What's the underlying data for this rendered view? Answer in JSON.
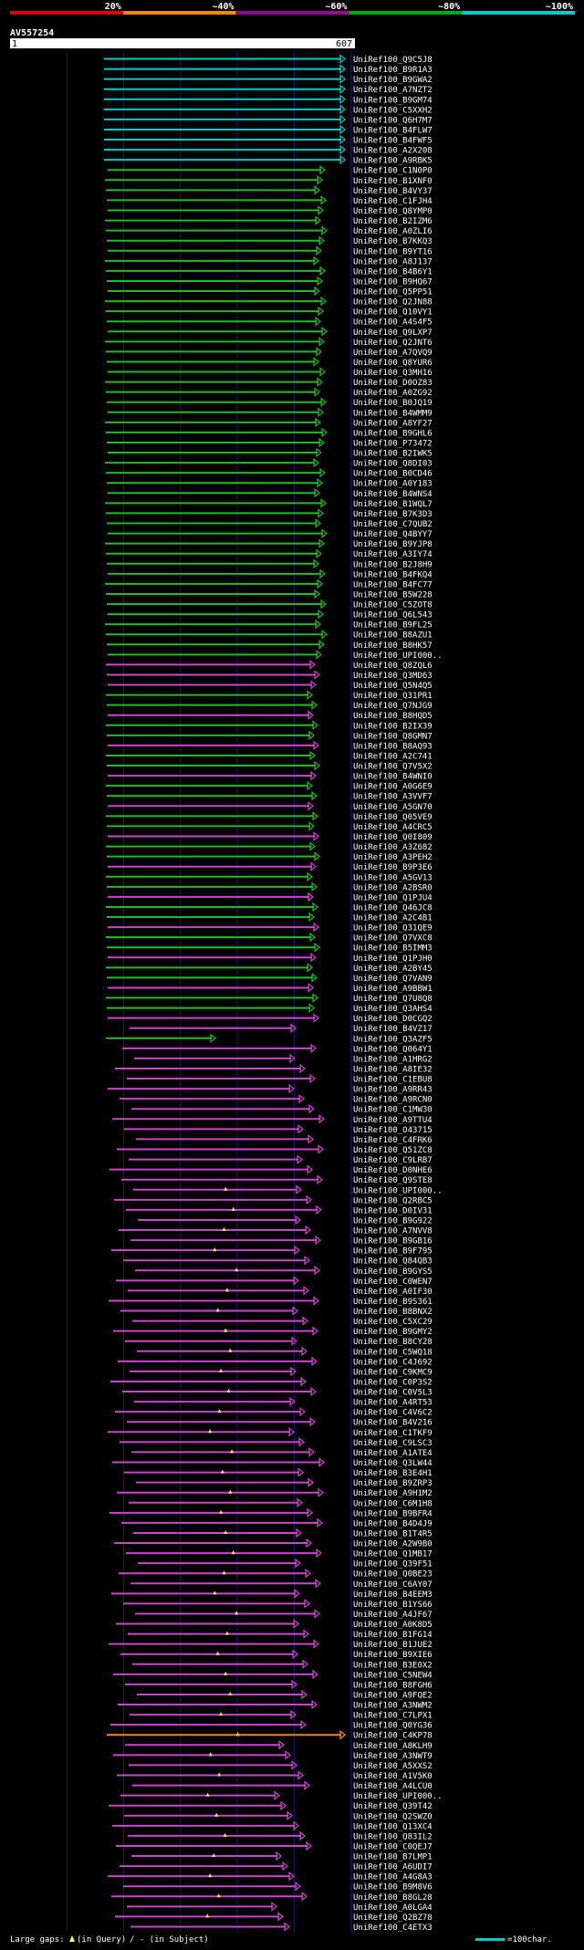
{
  "chart_data": {
    "type": "alignment-overview",
    "query": "AV557254",
    "query_length": 607,
    "axis_start_label": "1",
    "axis_end_label": "607",
    "scale": [
      {
        "label": "20%",
        "color": "#dd0000"
      },
      {
        "label": "~40%",
        "color": "#ff8800"
      },
      {
        "label": "~60%",
        "color": "#990099"
      },
      {
        "label": "~80%",
        "color": "#00aa00"
      },
      {
        "label": "~100%",
        "color": "#00cccc"
      }
    ],
    "hits": [
      "UniRef100_Q9C5J8",
      "UniRef100_B9R1A3",
      "UniRef100_B9GWA2",
      "UniRef100_A7NZT2",
      "UniRef100_B9GM74",
      "UniRef100_C5XXH2",
      "UniRef100_Q6H7M7",
      "UniRef100_B4FLW7",
      "UniRef100_B4FWF5",
      "UniRef100_A2X208",
      "UniRef100_A9RBK5",
      "UniRef100_C1N0P0",
      "UniRef100_B1XNF0",
      "UniRef100_B4VY37",
      "UniRef100_C1FJH4",
      "UniRef100_Q8YMP0",
      "UniRef100_B2IZM6",
      "UniRef100_A0ZLI6",
      "UniRef100_B7KKQ3",
      "UniRef100_B9YT16",
      "UniRef100_A8J137",
      "UniRef100_B4B6Y1",
      "UniRef100_B9HQ67",
      "UniRef100_Q5PP51",
      "UniRef100_Q2JN88",
      "UniRef100_Q10VY1",
      "UniRef100_A4S4F5",
      "UniRef100_Q9LXP7",
      "UniRef100_Q2JNT6",
      "UniRef100_A7QVQ9",
      "UniRef100_Q8YUR6",
      "UniRef100_Q3MH16",
      "UniRef100_D0OZ83",
      "UniRef100_A0ZG92",
      "UniRef100_B0JQ19",
      "UniRef100_B4WMM9",
      "UniRef100_A8YF27",
      "UniRef100_B9GHL6",
      "UniRef100_P73472",
      "UniRef100_B2IWK5",
      "UniRef100_Q8DI03",
      "UniRef100_B0CD46",
      "UniRef100_A0Y183",
      "UniRef100_B4WNS4",
      "UniRef100_B1WQL7",
      "UniRef100_B7K3D3",
      "UniRef100_C7QUB2",
      "UniRef100_Q4BYY7",
      "UniRef100_B9YJP8",
      "UniRef100_A3IY74",
      "UniRef100_B2J8H9",
      "UniRef100_B4FKQ4",
      "UniRef100_B4FC77",
      "UniRef100_B5W228",
      "UniRef100_C5ZOT8",
      "UniRef100_Q6L543",
      "UniRef100_B9FL25",
      "UniRef100_B8AZU1",
      "UniRef100_B8HK57",
      "UniRef100_UPI000..",
      "UniRef100_Q8ZQL6",
      "UniRef100_Q3MD63",
      "UniRef100_Q5N4Q5",
      "UniRef100_Q31PR1",
      "UniRef100_Q7NJG9",
      "UniRef100_B8HQD5",
      "UniRef100_B2IX39",
      "UniRef100_Q8GMN7",
      "UniRef100_B8AQ93",
      "UniRef100_A2C741",
      "UniRef100_Q7V5X2",
      "UniRef100_B4WNI0",
      "UniRef100_A0G6E9",
      "UniRef100_A3VVF7",
      "UniRef100_A5GN70",
      "UniRef100_Q05VE9",
      "UniRef100_A4CRC5",
      "UniRef100_Q0I809",
      "UniRef100_A3Z682",
      "UniRef100_A3PEH2",
      "UniRef100_B9P3E6",
      "UniRef100_A5GV13",
      "UniRef100_A2BSR0",
      "UniRef100_Q1PJU4",
      "UniRef100_Q46JC8",
      "UniRef100_A2C4B1",
      "UniRef100_Q31QE9",
      "UniRef100_Q7VXC8",
      "UniRef100_B5IMM3",
      "UniRef100_Q1PJH0",
      "UniRef100_A2BY45",
      "UniRef100_Q7VAN9",
      "UniRef100_A9BBW1",
      "UniRef100_Q7U8Q8",
      "UniRef100_Q3AHS4",
      "UniRef100_D0CGQ2",
      "UniRef100_B4VZ17",
      "UniRef100_Q3AZF5",
      "UniRef100_Q064Y1",
      "UniRef100_A1HRG2",
      "UniRef100_A8IE32",
      "UniRef100_C1EBU8",
      "UniRef100_A9RR43",
      "UniRef100_A9RCN0",
      "UniRef100_C1MW30",
      "UniRef100_A9TTU4",
      "UniRef100_O43715",
      "UniRef100_C4FRK6",
      "UniRef100_Q51ZC8",
      "UniRef100_C9LRB7",
      "UniRef100_D0NHE6",
      "UniRef100_Q9STE8",
      "UniRef100_UPI000..",
      "UniRef100_Q2RBC5",
      "UniRef100_D0IV31",
      "UniRef100_B9G922",
      "UniRef100_A7NVV8",
      "UniRef100_B9GB16",
      "UniRef100_B9F795",
      "UniRef100_Q84QB3",
      "UniRef100_B9GYS5",
      "UniRef100_C0WEN7",
      "UniRef100_A0IF30",
      "UniRef100_B9S361",
      "UniRef100_B8BNX2",
      "UniRef100_C5XC29",
      "UniRef100_B9GMY2",
      "UniRef100_B8CY28",
      "UniRef100_C5WQ18",
      "UniRef100_C4J692",
      "UniRef100_C9KMC9",
      "UniRef100_C0P3S2",
      "UniRef100_C0V5L3",
      "UniRef100_A4RT53",
      "UniRef100_C4V6C2",
      "UniRef100_B4V216",
      "UniRef100_C1TKF9",
      "UniRef100_C9LSC3",
      "UniRef100_A1ATE4",
      "UniRef100_Q3LW44",
      "UniRef100_B3E4H1",
      "UniRef100_B9ZRP3",
      "UniRef100_A9H1M2",
      "UniRef100_C6M1H8",
      "UniRef100_B9BFR4",
      "UniRef100_B4D4J9",
      "UniRef100_B1T4R5",
      "UniRef100_A2W9B0",
      "UniRef100_Q1MB17",
      "UniRef100_Q39F51",
      "UniRef100_Q0BE23",
      "UniRef100_C6AY07",
      "UniRef100_B4EEM3",
      "UniRef100_B1YS66",
      "UniRef100_A4JF67",
      "UniRef100_A0K8D5",
      "UniRef100_B1FG14",
      "UniRef100_B1JUE2",
      "UniRef100_B9XIE6",
      "UniRef100_B3E0X2",
      "UniRef100_C5NEW4",
      "UniRef100_B8FGH6",
      "UniRef100_A9FQE2",
      "UniRef100_A3NWM2",
      "UniRef100_C7LPX1",
      "UniRef100_Q0YG36",
      "UniRef100_C4KP78",
      "UniRef100_A8KLH9",
      "UniRef100_A3NWT9",
      "UniRef100_A5XXS2",
      "UniRef100_A1V5K0",
      "UniRef100_A4LCU0",
      "UniRef100_UPI000..",
      "UniRef100_Q39T42",
      "UniRef100_Q2SWZ0",
      "UniRef100_Q13XC4",
      "UniRef100_Q83IL2",
      "UniRef100_C0QEJ7",
      "UniRef100_B7LMP1",
      "UniRef100_A6UDI7",
      "UniRef100_A4G8A3",
      "UniRef100_B9M8V6",
      "UniRef100_B8GL28",
      "UniRef100_A0LGA4",
      "UniRef100_Q2BZ78",
      "UniRef100_C4ETX3"
    ],
    "legend": {
      "gaps_label": "Large gaps:",
      "query_gap_text": "(in Query)",
      "subject_gap_text": "/ - (in Subject)",
      "scale_text": "=100char."
    }
  }
}
